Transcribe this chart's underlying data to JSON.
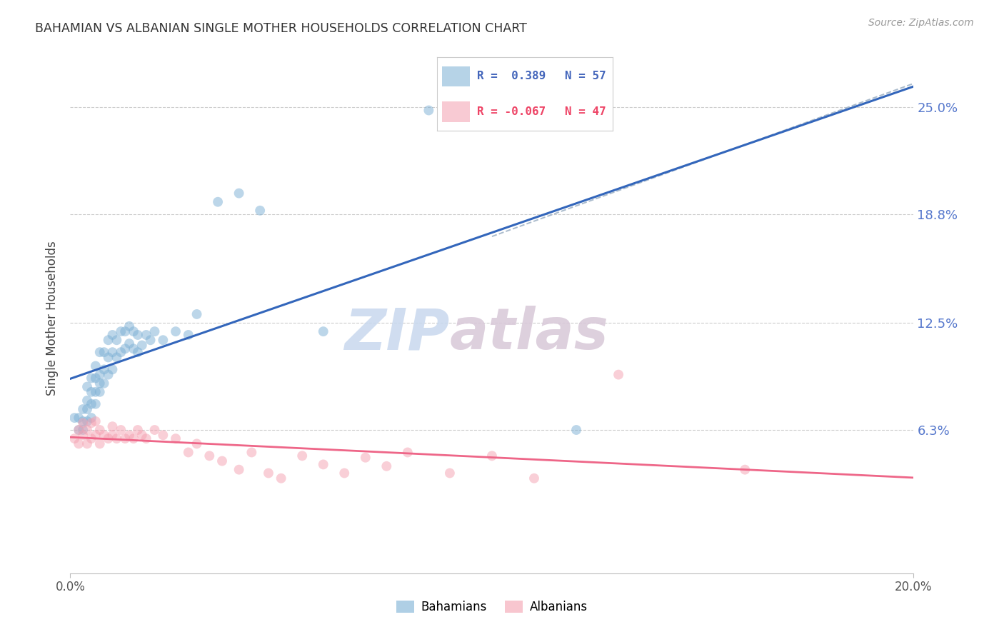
{
  "title": "BAHAMIAN VS ALBANIAN SINGLE MOTHER HOUSEHOLDS CORRELATION CHART",
  "source": "Source: ZipAtlas.com",
  "ylabel": "Single Mother Households",
  "ytick_labels": [
    "6.3%",
    "12.5%",
    "18.8%",
    "25.0%"
  ],
  "ytick_values": [
    0.063,
    0.125,
    0.188,
    0.25
  ],
  "xlim": [
    0.0,
    0.2
  ],
  "ylim": [
    -0.02,
    0.275
  ],
  "xtick_positions": [
    0.0,
    0.2
  ],
  "xtick_labels": [
    "0.0%",
    "20.0%"
  ],
  "bahamian_color": "#7BAFD4",
  "albanian_color": "#F4A0B0",
  "bahamian_line_color": "#3366BB",
  "albanian_line_color": "#EE6688",
  "diagonal_line_color": "#AABBCC",
  "legend_r_bahamian": "R =  0.389",
  "legend_n_bahamian": "N = 57",
  "legend_r_albanian": "R = -0.067",
  "legend_n_albanian": "N = 47",
  "bahamian_x": [
    0.001,
    0.002,
    0.002,
    0.003,
    0.003,
    0.003,
    0.004,
    0.004,
    0.004,
    0.004,
    0.005,
    0.005,
    0.005,
    0.005,
    0.006,
    0.006,
    0.006,
    0.006,
    0.007,
    0.007,
    0.007,
    0.007,
    0.008,
    0.008,
    0.008,
    0.009,
    0.009,
    0.009,
    0.01,
    0.01,
    0.01,
    0.011,
    0.011,
    0.012,
    0.012,
    0.013,
    0.013,
    0.014,
    0.014,
    0.015,
    0.015,
    0.016,
    0.016,
    0.017,
    0.018,
    0.019,
    0.02,
    0.022,
    0.025,
    0.028,
    0.03,
    0.035,
    0.04,
    0.045,
    0.06,
    0.085,
    0.12
  ],
  "bahamian_y": [
    0.07,
    0.063,
    0.07,
    0.063,
    0.068,
    0.075,
    0.068,
    0.075,
    0.08,
    0.088,
    0.07,
    0.078,
    0.085,
    0.093,
    0.078,
    0.085,
    0.093,
    0.1,
    0.085,
    0.09,
    0.095,
    0.108,
    0.09,
    0.098,
    0.108,
    0.095,
    0.105,
    0.115,
    0.098,
    0.108,
    0.118,
    0.105,
    0.115,
    0.108,
    0.12,
    0.11,
    0.12,
    0.113,
    0.123,
    0.11,
    0.12,
    0.108,
    0.118,
    0.112,
    0.118,
    0.115,
    0.12,
    0.115,
    0.12,
    0.118,
    0.13,
    0.195,
    0.2,
    0.19,
    0.12,
    0.248,
    0.063
  ],
  "albanian_x": [
    0.001,
    0.002,
    0.002,
    0.003,
    0.003,
    0.004,
    0.004,
    0.005,
    0.005,
    0.006,
    0.006,
    0.007,
    0.007,
    0.008,
    0.009,
    0.01,
    0.01,
    0.011,
    0.012,
    0.013,
    0.014,
    0.015,
    0.016,
    0.017,
    0.018,
    0.02,
    0.022,
    0.025,
    0.028,
    0.03,
    0.033,
    0.036,
    0.04,
    0.043,
    0.047,
    0.05,
    0.055,
    0.06,
    0.065,
    0.07,
    0.075,
    0.08,
    0.09,
    0.1,
    0.11,
    0.13,
    0.16
  ],
  "albanian_y": [
    0.058,
    0.055,
    0.063,
    0.06,
    0.067,
    0.055,
    0.063,
    0.058,
    0.067,
    0.06,
    0.068,
    0.055,
    0.063,
    0.06,
    0.058,
    0.065,
    0.06,
    0.058,
    0.063,
    0.058,
    0.06,
    0.058,
    0.063,
    0.06,
    0.058,
    0.063,
    0.06,
    0.058,
    0.05,
    0.055,
    0.048,
    0.045,
    0.04,
    0.05,
    0.038,
    0.035,
    0.048,
    0.043,
    0.038,
    0.047,
    0.042,
    0.05,
    0.038,
    0.048,
    0.035,
    0.095,
    0.04
  ],
  "watermark_zip": "ZIP",
  "watermark_atlas": "atlas",
  "background_color": "#FFFFFF",
  "grid_color": "#CCCCCC"
}
